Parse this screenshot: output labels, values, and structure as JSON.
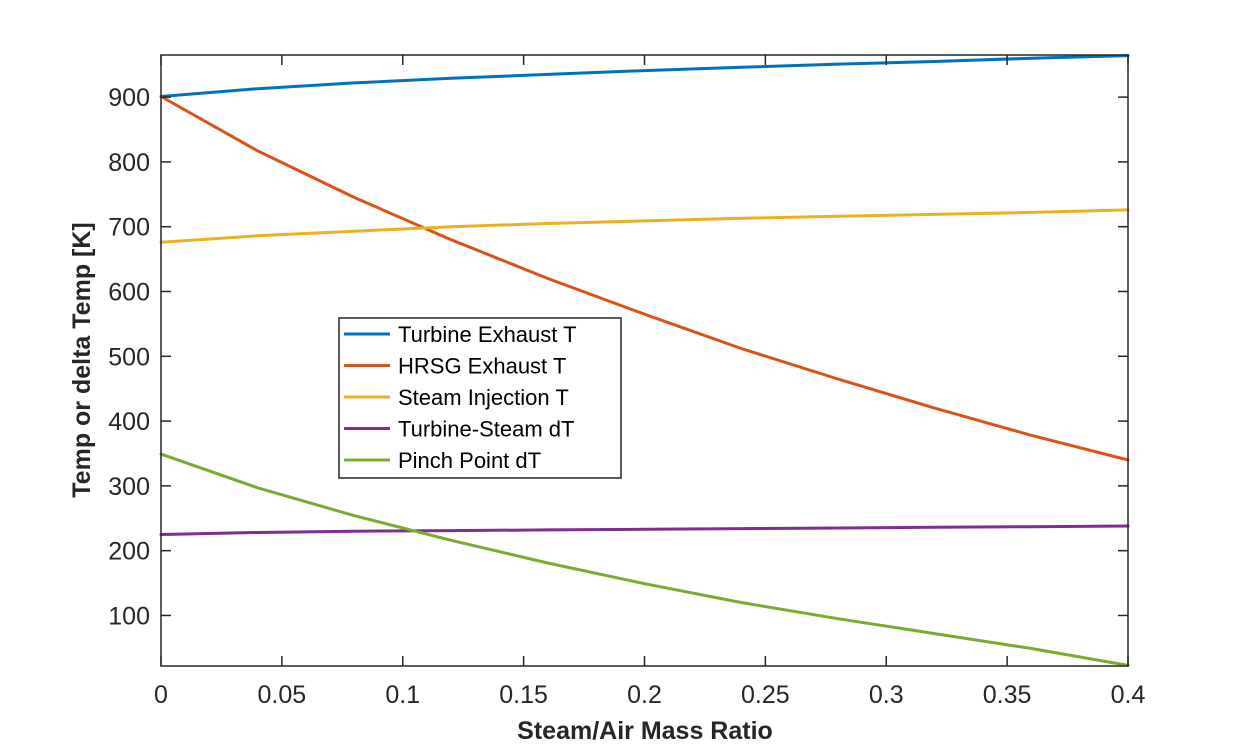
{
  "chart_data": {
    "type": "line",
    "title": "",
    "xlabel": "Steam/Air Mass Ratio",
    "ylabel": "Temp or delta Temp [K]",
    "xlim": [
      0,
      0.4
    ],
    "ylim": [
      22,
      965
    ],
    "x_ticks": [
      0,
      0.05,
      0.1,
      0.15,
      0.2,
      0.25,
      0.3,
      0.35,
      0.4
    ],
    "x_tick_labels": [
      "0",
      "0.05",
      "0.1",
      "0.15",
      "0.2",
      "0.25",
      "0.3",
      "0.35",
      "0.4"
    ],
    "y_ticks": [
      100,
      200,
      300,
      400,
      500,
      600,
      700,
      800,
      900
    ],
    "y_tick_labels": [
      "100",
      "200",
      "300",
      "400",
      "500",
      "600",
      "700",
      "800",
      "900"
    ],
    "grid": false,
    "legend_position": "center-left",
    "x": [
      0,
      0.04,
      0.08,
      0.12,
      0.16,
      0.2,
      0.24,
      0.28,
      0.32,
      0.36,
      0.4
    ],
    "series": [
      {
        "name": "Turbine Exhaust T",
        "color": "#0072BD",
        "values": [
          901,
          913,
          922,
          929,
          935,
          941,
          946,
          951,
          955,
          960,
          964
        ]
      },
      {
        "name": "HRSG Exhaust T",
        "color": "#D95319",
        "values": [
          901,
          817,
          745,
          680,
          620,
          565,
          512,
          465,
          420,
          378,
          340
        ]
      },
      {
        "name": "Steam Injection T",
        "color": "#EDB120",
        "values": [
          676,
          686,
          693,
          700,
          705,
          709,
          713,
          716,
          719,
          722,
          726
        ]
      },
      {
        "name": "Turbine-Steam dT",
        "color": "#7E2F8E",
        "values": [
          225,
          228,
          230,
          231,
          232,
          233,
          234,
          235,
          236,
          237,
          238
        ]
      },
      {
        "name": "Pinch Point dT",
        "color": "#77AC30",
        "values": [
          349,
          297,
          254,
          216,
          181,
          149,
          120,
          95,
          72,
          49,
          23
        ]
      }
    ]
  }
}
